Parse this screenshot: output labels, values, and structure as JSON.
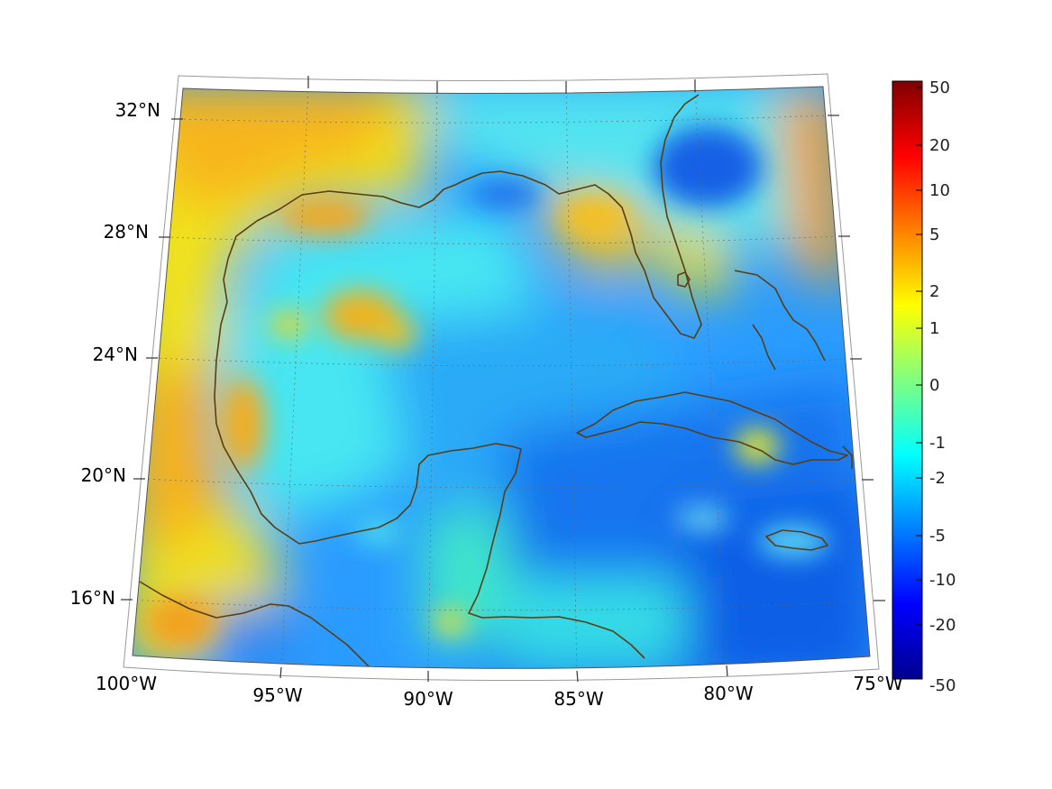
{
  "map": {
    "lat_labels": [
      "32°N",
      "28°N",
      "24°N",
      "20°N",
      "16°N"
    ],
    "lon_labels": [
      "100°W",
      "95°W",
      "90°W",
      "85°W",
      "80°W",
      "75°W"
    ],
    "extent": {
      "lon": [
        -100,
        -75
      ],
      "lat": [
        14.5,
        33
      ]
    }
  },
  "colorbar": {
    "labels": [
      "50",
      "20",
      "10",
      "5",
      "2",
      "1",
      "0",
      "-1",
      "-2",
      "-5",
      "-10",
      "-20",
      "-50"
    ],
    "colormap": "jet"
  },
  "colors": {
    "coastline": "#5a3d14",
    "grid": "#666666"
  }
}
